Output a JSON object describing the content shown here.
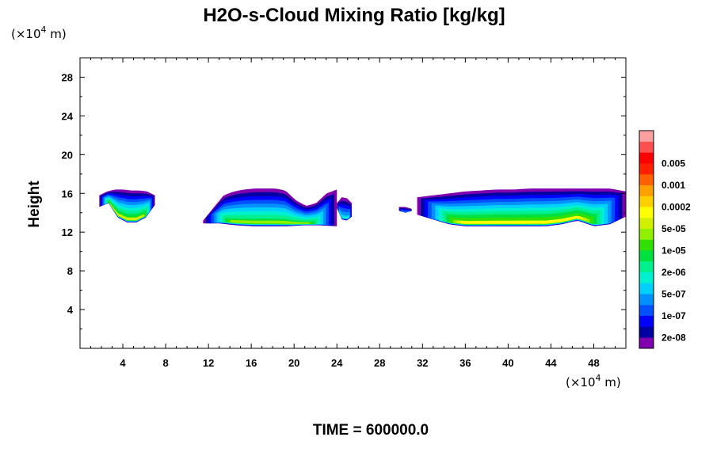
{
  "chart_data": {
    "type": "contour",
    "title": "H2O-s-Cloud Mixing Ratio [kg/kg]",
    "ylabel": "Height",
    "y_unit_text": "(×10",
    "y_unit_sup": "4",
    "y_unit_tail": " m)",
    "x_unit_text": "(×10",
    "x_unit_sup": "4",
    "x_unit_tail": " m)",
    "xlim": [
      0,
      51
    ],
    "ylim": [
      0,
      30
    ],
    "x_ticks": [
      4,
      8,
      12,
      16,
      20,
      24,
      28,
      32,
      36,
      40,
      44,
      48
    ],
    "y_ticks": [
      4,
      8,
      12,
      16,
      20,
      24,
      28
    ],
    "x_tick_labels": [
      "4",
      "8",
      "12",
      "16",
      "20",
      "24",
      "28",
      "32",
      "36",
      "40",
      "44",
      "48"
    ],
    "y_tick_labels": [
      "4",
      "8",
      "12",
      "16",
      "20",
      "24",
      "28"
    ],
    "colorbar": {
      "colors": [
        "#8000b0",
        "#0000a0",
        "#0000ff",
        "#0050ff",
        "#0090ff",
        "#00d0ff",
        "#00f0d0",
        "#00f090",
        "#00e040",
        "#30e000",
        "#90f000",
        "#d0f000",
        "#ffff00",
        "#ffd000",
        "#ffa000",
        "#ff6000",
        "#ff2000",
        "#ff0000",
        "#ff5050",
        "#ffa0a0"
      ],
      "labels": [
        "2e-08",
        "1e-07",
        "5e-07",
        "2e-06",
        "1e-05",
        "5e-05",
        "0.0002",
        "0.001",
        "0.005"
      ]
    },
    "cloud_layers": [
      {
        "x": [
          1.8,
          7.0
        ],
        "bottom": [
          14.6,
          15.0,
          13.5,
          13.0,
          13.0,
          13.5,
          14.8
        ],
        "top": [
          15.8,
          16.2,
          16.4,
          16.4,
          16.3,
          16.3,
          16.2,
          15.8
        ],
        "peak_level": 11
      },
      {
        "x": [
          11.5,
          24.0
        ],
        "bottom": [
          12.9,
          12.9,
          12.7,
          12.6,
          12.6,
          12.6,
          12.7,
          12.7,
          12.6
        ],
        "top": [
          13.2,
          14.5,
          15.8,
          16.2,
          16.4,
          16.5,
          16.5,
          16.5,
          16.3,
          15.3,
          14.7,
          15.0,
          16.0,
          16.4
        ],
        "peak_level": 10
      },
      {
        "x": [
          24.0,
          25.4
        ],
        "bottom": [
          14.5,
          13.3,
          13.2,
          13.6
        ],
        "top": [
          15.0,
          15.6,
          15.5,
          15.0
        ],
        "peak_level": 6
      },
      {
        "x": [
          29.8,
          31.0
        ],
        "bottom": [
          14.2,
          14.0,
          14.2
        ],
        "top": [
          14.6,
          14.6,
          14.4
        ],
        "peak_level": 4
      },
      {
        "x": [
          31.5,
          51.0
        ],
        "bottom": [
          13.8,
          13.3,
          12.8,
          12.6,
          12.6,
          12.6,
          12.6,
          12.6,
          12.6,
          12.8,
          13.2,
          12.6,
          12.8,
          13.6
        ],
        "top": [
          15.6,
          15.8,
          16.0,
          16.2,
          16.3,
          16.4,
          16.4,
          16.5,
          16.5,
          16.5,
          16.5,
          16.5,
          16.5,
          16.2
        ],
        "peak_level": 12
      }
    ]
  },
  "footer": {
    "time_text": "TIME = 600000.0"
  }
}
